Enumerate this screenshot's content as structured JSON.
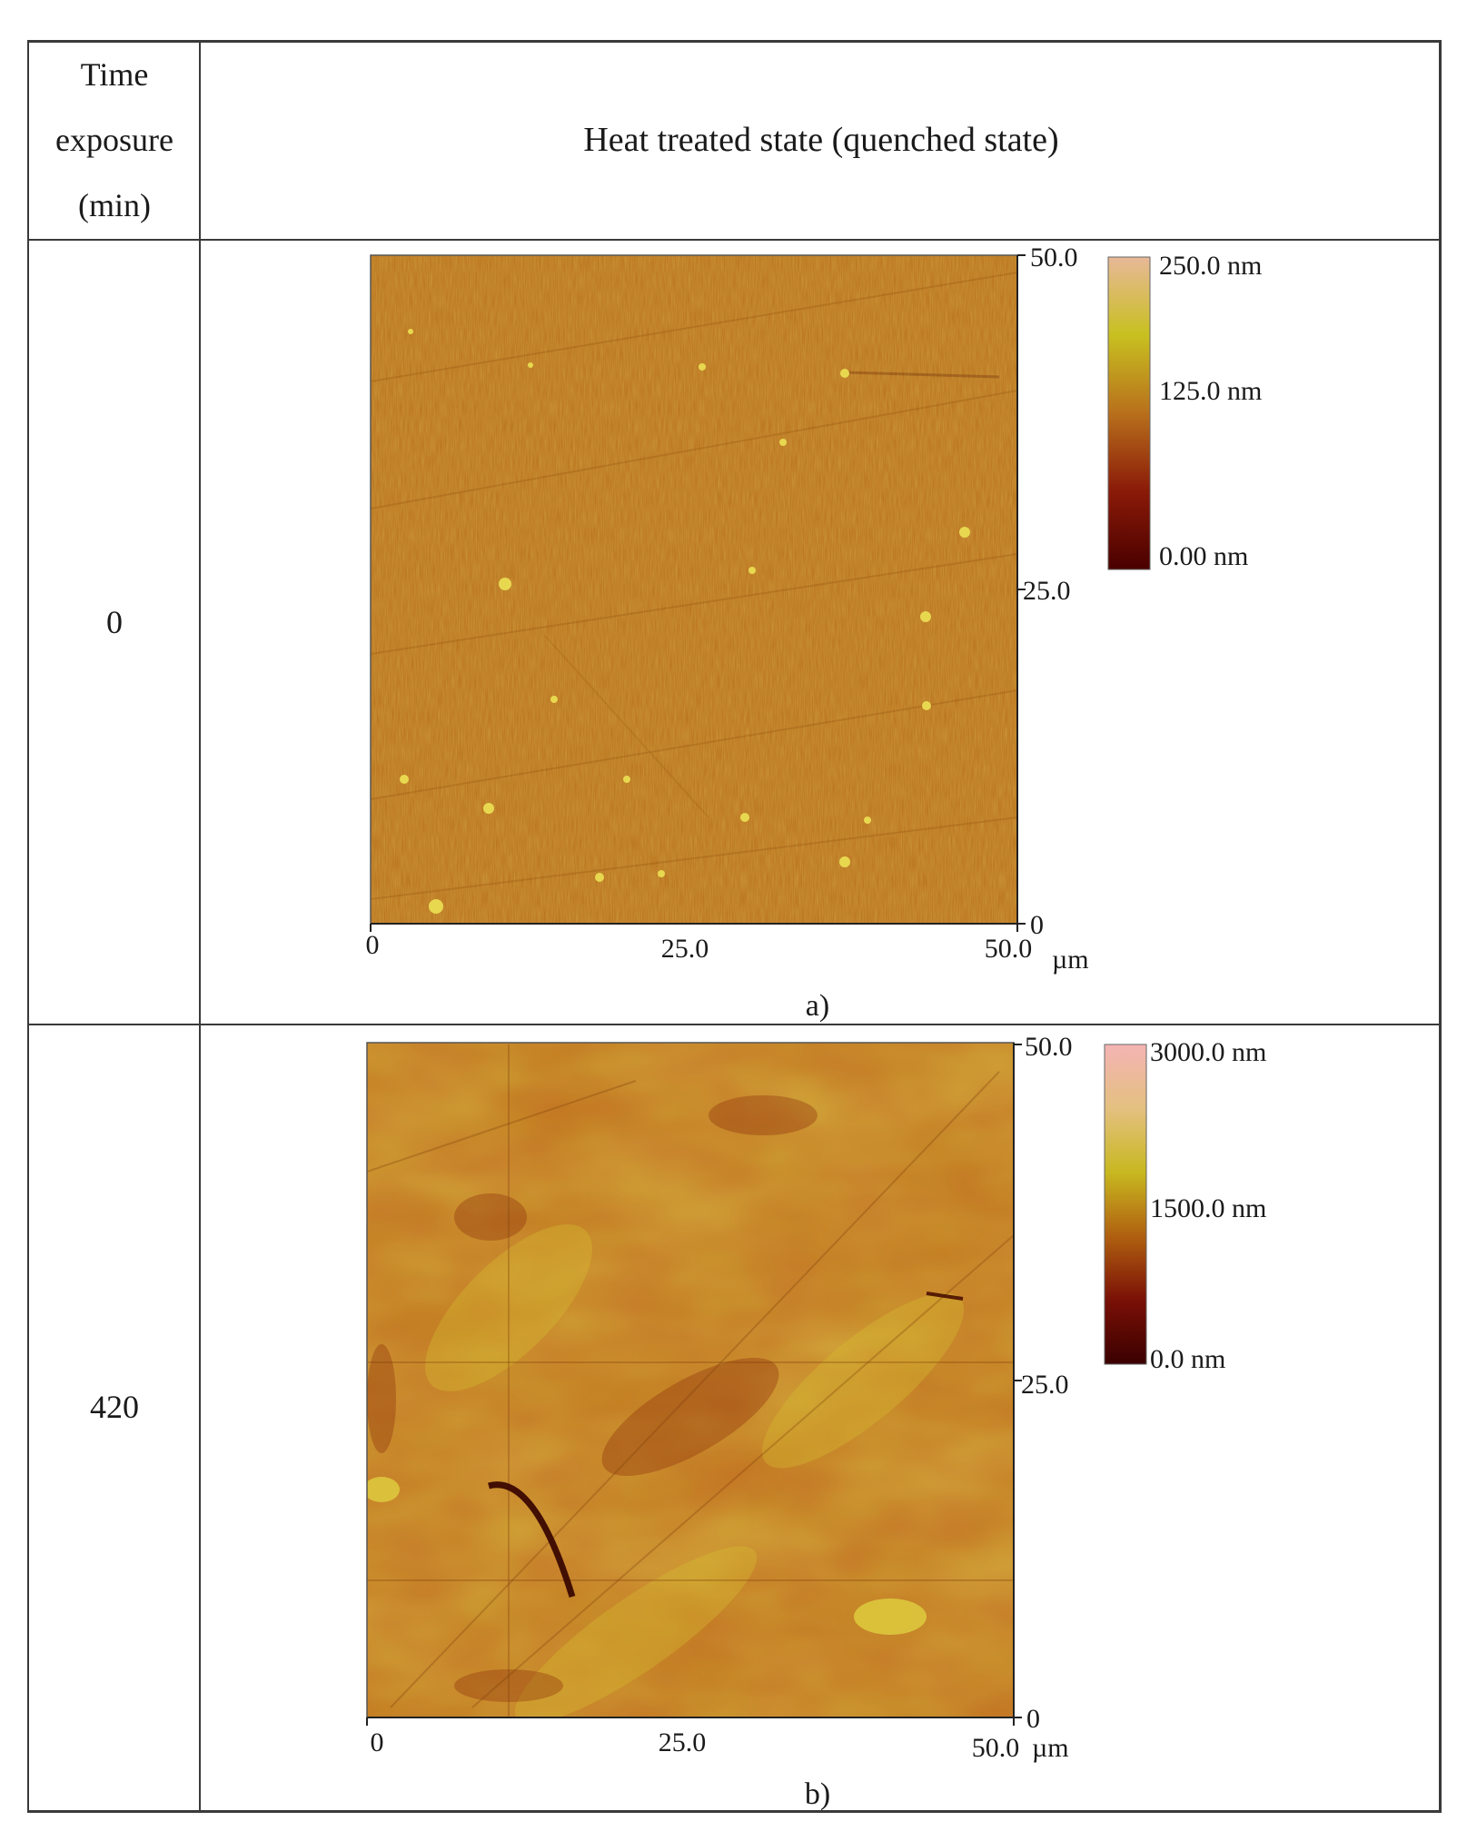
{
  "table": {
    "header": {
      "time_label_lines": [
        "Time",
        "exposure",
        "(min)"
      ],
      "state_label": "Heat treated state (quenched state)"
    },
    "rows": [
      {
        "time": "0",
        "panel": {
          "caption": "a)",
          "x_ticks": [
            "0",
            "25.0",
            "50.0"
          ],
          "y_ticks": [
            "50.0",
            "25.0",
            "0"
          ],
          "unit": "µm",
          "colorbar_labels": [
            "250.0 nm",
            "125.0 nm",
            "0.00 nm"
          ],
          "colorbar_stops": [
            "#e8b898",
            "#c8c020",
            "#b8701c",
            "#8a1a08",
            "#4a0000"
          ],
          "map_base_color": "#b8701c"
        }
      },
      {
        "time": "420",
        "panel": {
          "caption": "b)",
          "x_ticks": [
            "0",
            "25.0",
            "50.0"
          ],
          "y_ticks": [
            "50.0",
            "25.0",
            "0"
          ],
          "unit": "µm",
          "colorbar_labels": [
            "3000.0 nm",
            "1500.0 nm",
            "0.0 nm"
          ],
          "colorbar_stops": [
            "#f4b4b4",
            "#e4c080",
            "#c8b820",
            "#b06010",
            "#7a1006",
            "#3a0000"
          ],
          "map_base_color": "#c07a1c"
        }
      }
    ]
  }
}
